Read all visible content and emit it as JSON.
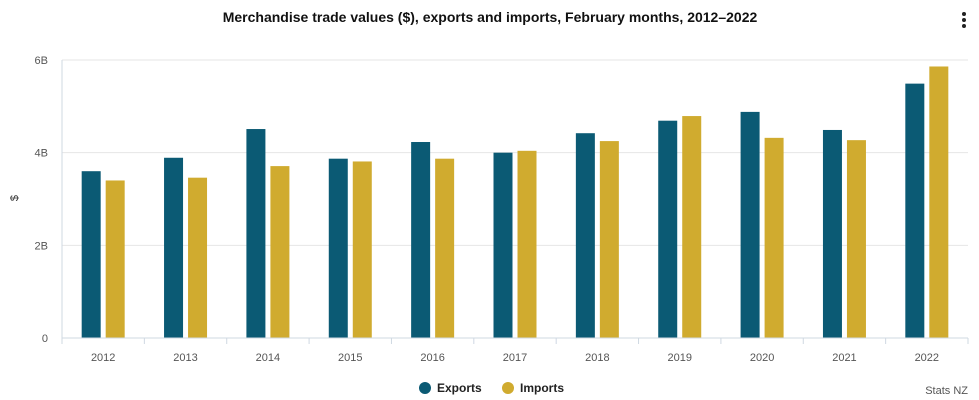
{
  "menu": {
    "icon": "kebab-menu-icon"
  },
  "colors": {
    "exports": "#0b5a74",
    "imports": "#d0ab2f",
    "grid": "#e6e6e6",
    "axis": "#cfd8e2",
    "text": "#222222",
    "muted": "#555555"
  },
  "chart_data": {
    "type": "bar",
    "title": "Merchandise trade values ($), exports and imports, February months, 2012–2022",
    "xlabel": "",
    "ylabel": "$",
    "ylim": [
      0,
      6000000000
    ],
    "yticks": [
      0,
      2000000000,
      4000000000,
      6000000000
    ],
    "ytick_labels": [
      "0",
      "2B",
      "4B",
      "6B"
    ],
    "categories": [
      "2012",
      "2013",
      "2014",
      "2015",
      "2016",
      "2017",
      "2018",
      "2019",
      "2020",
      "2021",
      "2022"
    ],
    "series": [
      {
        "name": "Exports",
        "values": [
          3600000000,
          3890000000,
          4510000000,
          3870000000,
          4230000000,
          4000000000,
          4420000000,
          4690000000,
          4880000000,
          4490000000,
          5490000000
        ]
      },
      {
        "name": "Imports",
        "values": [
          3400000000,
          3460000000,
          3710000000,
          3810000000,
          3870000000,
          4040000000,
          4250000000,
          4790000000,
          4320000000,
          4270000000,
          5860000000
        ]
      }
    ],
    "grid": true,
    "legend": "bottom-center",
    "source": "Stats NZ"
  }
}
